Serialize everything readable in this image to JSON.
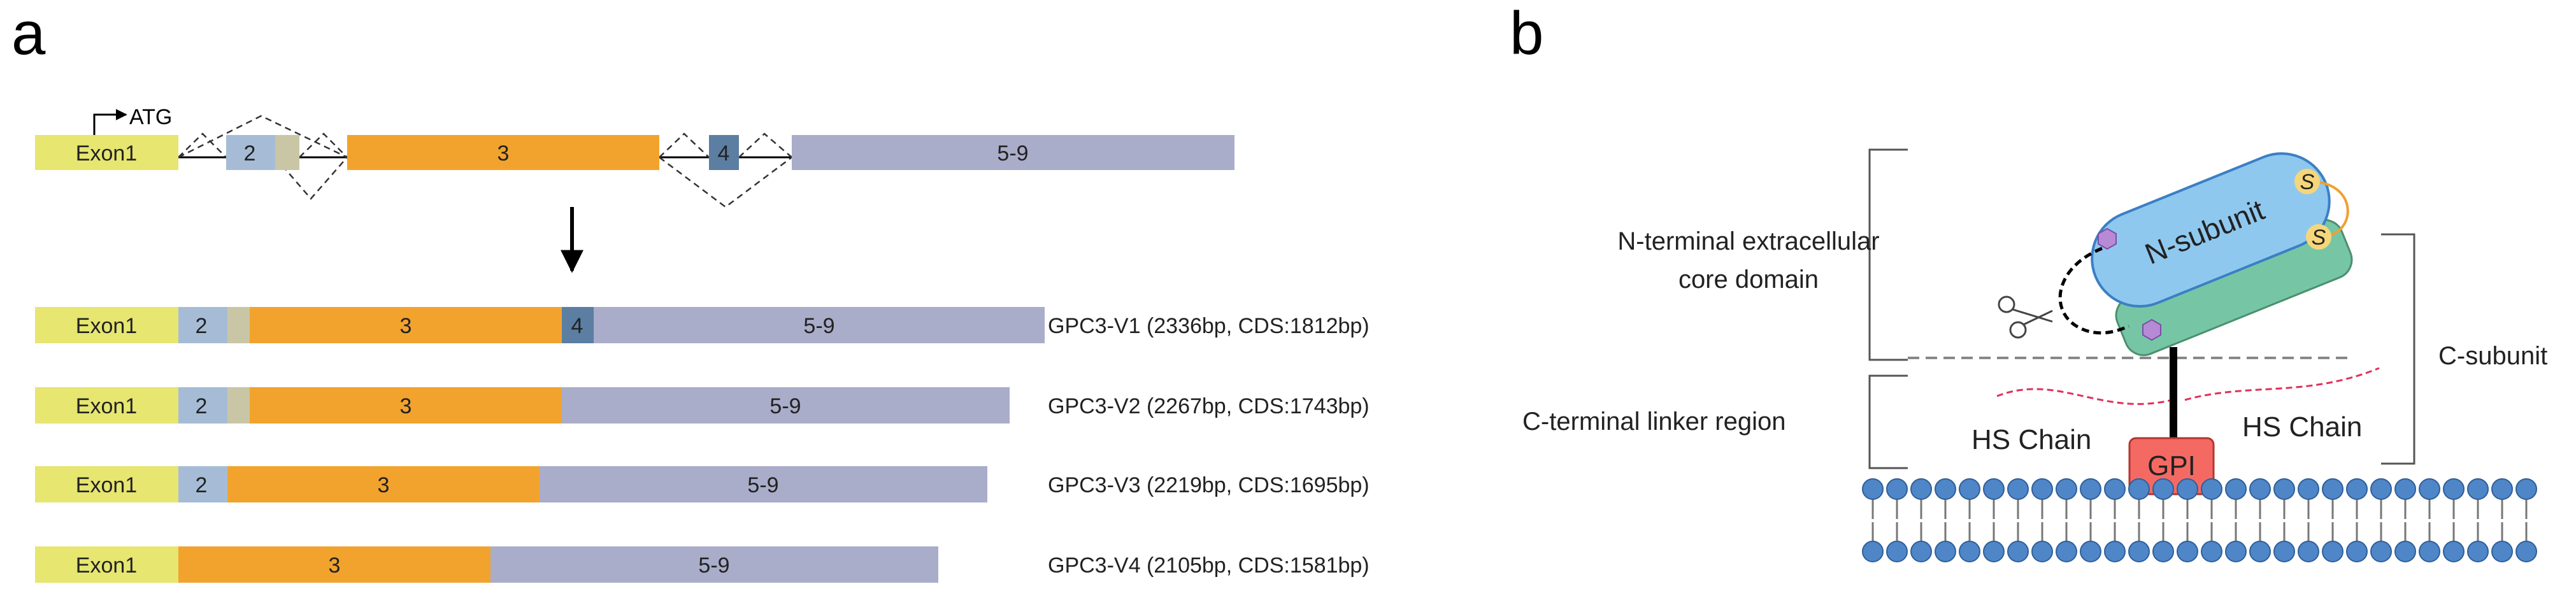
{
  "panel_a": {
    "letter": "a",
    "start_codon": "ATG",
    "gene": {
      "exons": [
        {
          "label": "Exon1",
          "color": "#e6e670"
        },
        {
          "label": "2",
          "color": "#a6bcd6"
        },
        {
          "label": "",
          "color": "#c9c6a6"
        },
        {
          "label": "3",
          "color": "#f2a32e"
        },
        {
          "label": "4",
          "color": "#5c7ea3"
        },
        {
          "label": "5-9",
          "color": "#a9adc9"
        }
      ]
    },
    "variants": [
      {
        "segments": [
          "Exon1",
          "2",
          "",
          "3",
          "4",
          "5-9"
        ],
        "caption": "GPC3-V1 (2336bp, CDS:1812bp)"
      },
      {
        "segments": [
          "Exon1",
          "2",
          "",
          "3",
          "5-9"
        ],
        "caption": "GPC3-V2 (2267bp, CDS:1743bp)"
      },
      {
        "segments": [
          "Exon1",
          "2",
          "3",
          "5-9"
        ],
        "caption": "GPC3-V3 (2219bp, CDS:1695bp)"
      },
      {
        "segments": [
          "Exon1",
          "3",
          "5-9"
        ],
        "caption": "GPC3-V4 (2105bp, CDS:1581bp)"
      }
    ]
  },
  "panel_b": {
    "letter": "b",
    "n_terminal_label": [
      "N-terminal extracellular",
      "core domain"
    ],
    "c_terminal_label": "C-terminal linker region",
    "c_subunit_label": "C-subunit",
    "n_subunit_label": "N-subunit",
    "disulfide_label": "S",
    "hs_chain_left": "HS Chain",
    "hs_chain_right": "HS Chain",
    "gpi_label": "GPI",
    "colors": {
      "n_subunit": "#8fc8ef",
      "c_subunit": "#76c6a6",
      "gpi": "#f46a63",
      "lipid_head": "#4f86c8",
      "hexagon": "#b78ad6",
      "disulfide": "#f6d67a",
      "hs_chain": "#e0305a"
    }
  }
}
